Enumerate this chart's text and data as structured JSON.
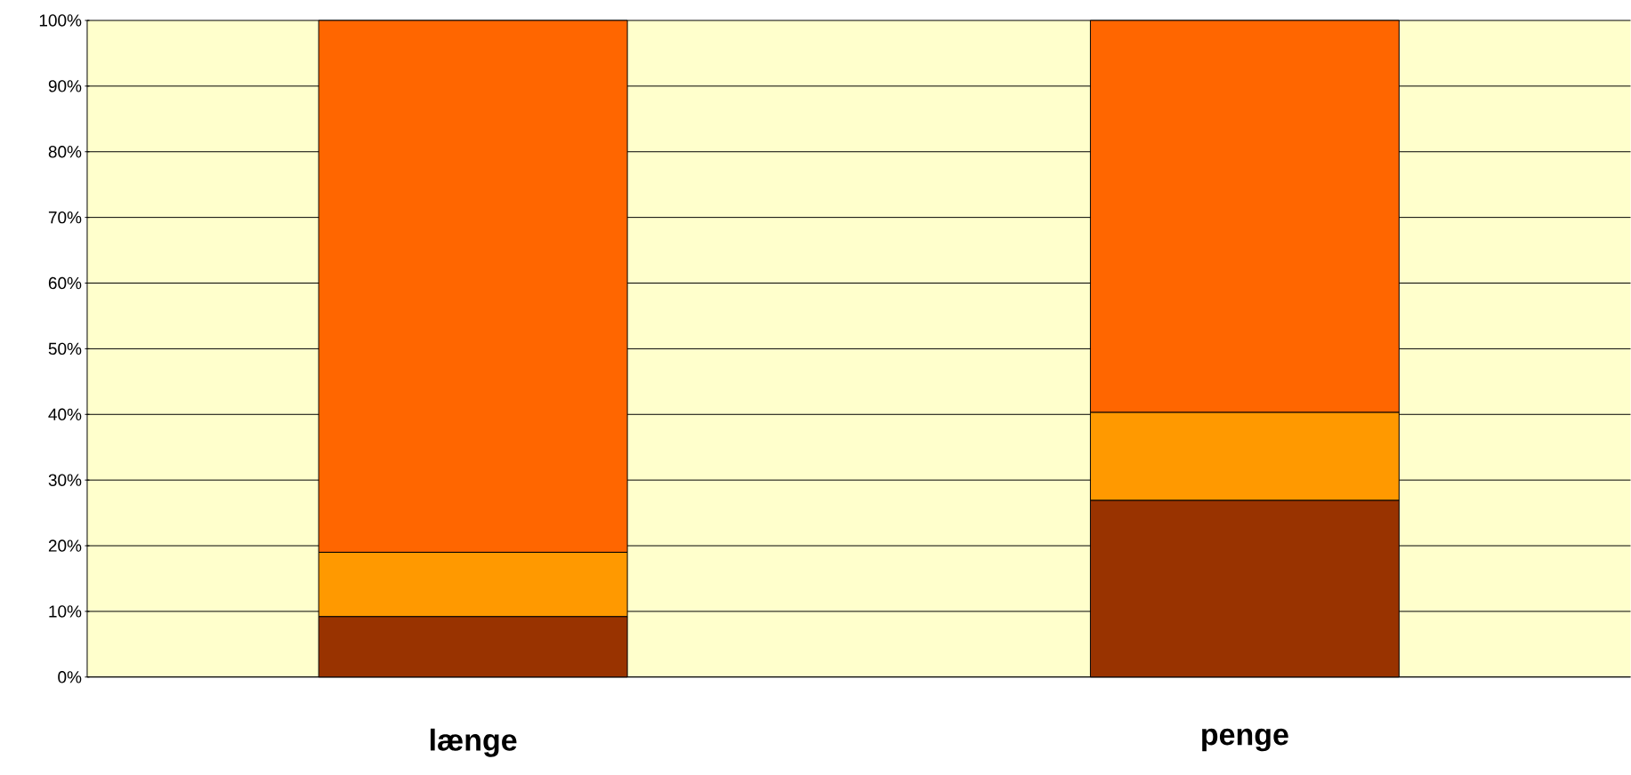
{
  "chart_data": {
    "type": "bar",
    "stacked": true,
    "categories": [
      "længe",
      "penge"
    ],
    "series": [
      {
        "color": "#993300",
        "values": [
          9.2,
          26.9
        ]
      },
      {
        "color": "#ff9900",
        "values": [
          9.8,
          13.4
        ]
      },
      {
        "color": "#ff6600",
        "values": [
          81.0,
          59.7
        ]
      }
    ],
    "ylim": [
      0,
      100
    ],
    "yticks": [
      {
        "value": 0,
        "label": "0%"
      },
      {
        "value": 10,
        "label": "10%"
      },
      {
        "value": 20,
        "label": "20%"
      },
      {
        "value": 30,
        "label": "30%"
      },
      {
        "value": 40,
        "label": "40%"
      },
      {
        "value": 50,
        "label": "50%"
      },
      {
        "value": 60,
        "label": "60%"
      },
      {
        "value": 70,
        "label": "70%"
      },
      {
        "value": 80,
        "label": "80%"
      },
      {
        "value": 90,
        "label": "90%"
      },
      {
        "value": 100,
        "label": "100%"
      }
    ],
    "grid": "y"
  }
}
